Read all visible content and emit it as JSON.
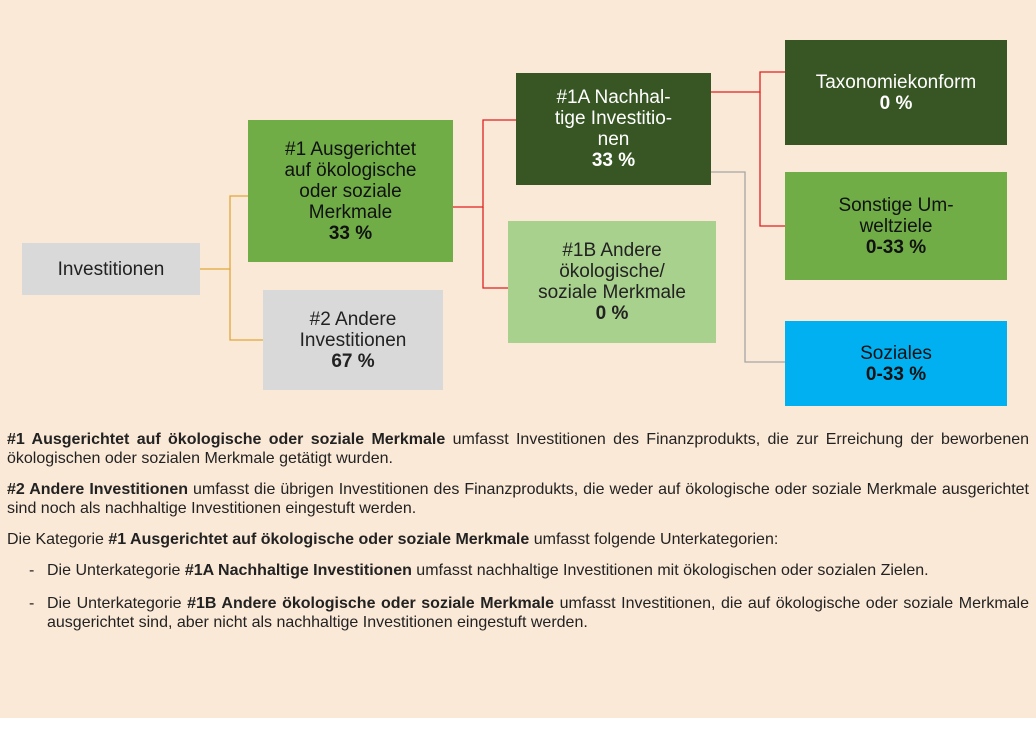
{
  "nodes": [
    {
      "lines": [
        "Investitionen"
      ]
    },
    {
      "lines": [
        "#1 Ausgerichtet",
        "auf ökologische",
        "oder soziale",
        "Merkmale"
      ],
      "value": "33 %"
    },
    {
      "lines": [
        "#2 Andere",
        "Investitionen"
      ],
      "value": "67 %"
    },
    {
      "lines": [
        "#1A Nachhal-",
        "tige Investitio-",
        "nen"
      ],
      "value": "33 %"
    },
    {
      "lines": [
        "#1B Andere",
        "ökologische/",
        "soziale Merkmale"
      ],
      "value": "0 %"
    },
    {
      "lines": [
        "Taxonomiekonform"
      ],
      "value": "0 %"
    },
    {
      "lines": [
        "Sonstige Um-",
        "weltziele"
      ],
      "value": "0-33 %"
    },
    {
      "lines": [
        "Soziales"
      ],
      "value": "0-33 %"
    }
  ],
  "paragraphs": [
    [
      {
        "b": "#1 Ausgerichtet auf ökologische oder soziale Merkmale"
      },
      {
        "t": " umfasst Investitionen des Finanzprodukts, die zur Erreichung der beworbenen ökologischen oder sozialen Merkmale getätigt wurden."
      }
    ],
    [
      {
        "b": "#2 Andere Investitionen"
      },
      {
        "t": " umfasst die übrigen Investitionen des Finanzprodukts, die weder auf ökologische oder soziale Merkmale ausgerichtet sind noch als nachhaltige Investitionen eingestuft werden."
      }
    ],
    [
      {
        "t": "Die Kategorie "
      },
      {
        "b": "#1 Ausgerichtet auf ökologische oder soziale Merkmale"
      },
      {
        "t": " umfasst folgende Unterkategorien:"
      }
    ]
  ],
  "list": [
    [
      {
        "t": "Die Unterkategorie "
      },
      {
        "b": "#1A Nachhaltige Investitionen"
      },
      {
        "t": " umfasst nachhaltige Investitionen mit ökologischen oder sozialen Zielen."
      }
    ],
    [
      {
        "t": "Die Unterkategorie "
      },
      {
        "b": "#1B Andere ökologische oder soziale Merkmale"
      },
      {
        "t": " umfasst Investitionen, die auf ökologische oder soziale Merkmale ausgerichtet sind, aber nicht als nachhaltige Investitionen eingestuft werden."
      }
    ]
  ]
}
